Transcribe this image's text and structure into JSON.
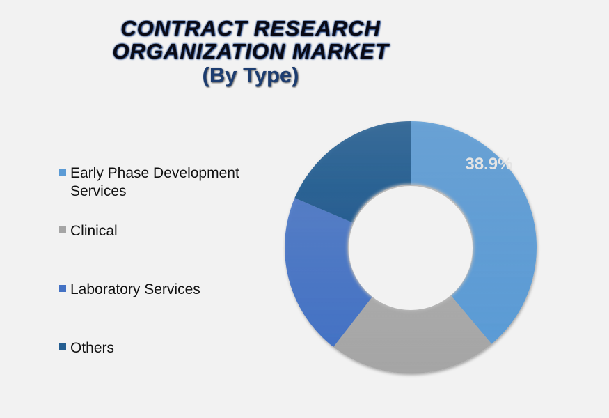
{
  "chart_data": {
    "type": "pie",
    "subtype": "donut",
    "title": "CONTRACT RESEARCH ORGANIZATION MARKET",
    "subtitle": "(By Type)",
    "categories": [
      "Early Phase Development Services",
      "Clinical",
      "Laboratory Services",
      "Others"
    ],
    "values": [
      38.9,
      21.6,
      20.9,
      18.6
    ],
    "data_labels": [
      "38.9%",
      "",
      "",
      ""
    ],
    "colors": [
      "#5b9bd5",
      "#a5a5a5",
      "#4472c4",
      "#255e91"
    ],
    "legend_position": "left"
  },
  "title_lines": [
    "CONTRACT RESEARCH",
    "ORGANIZATION MARKET",
    "(By Type)"
  ]
}
